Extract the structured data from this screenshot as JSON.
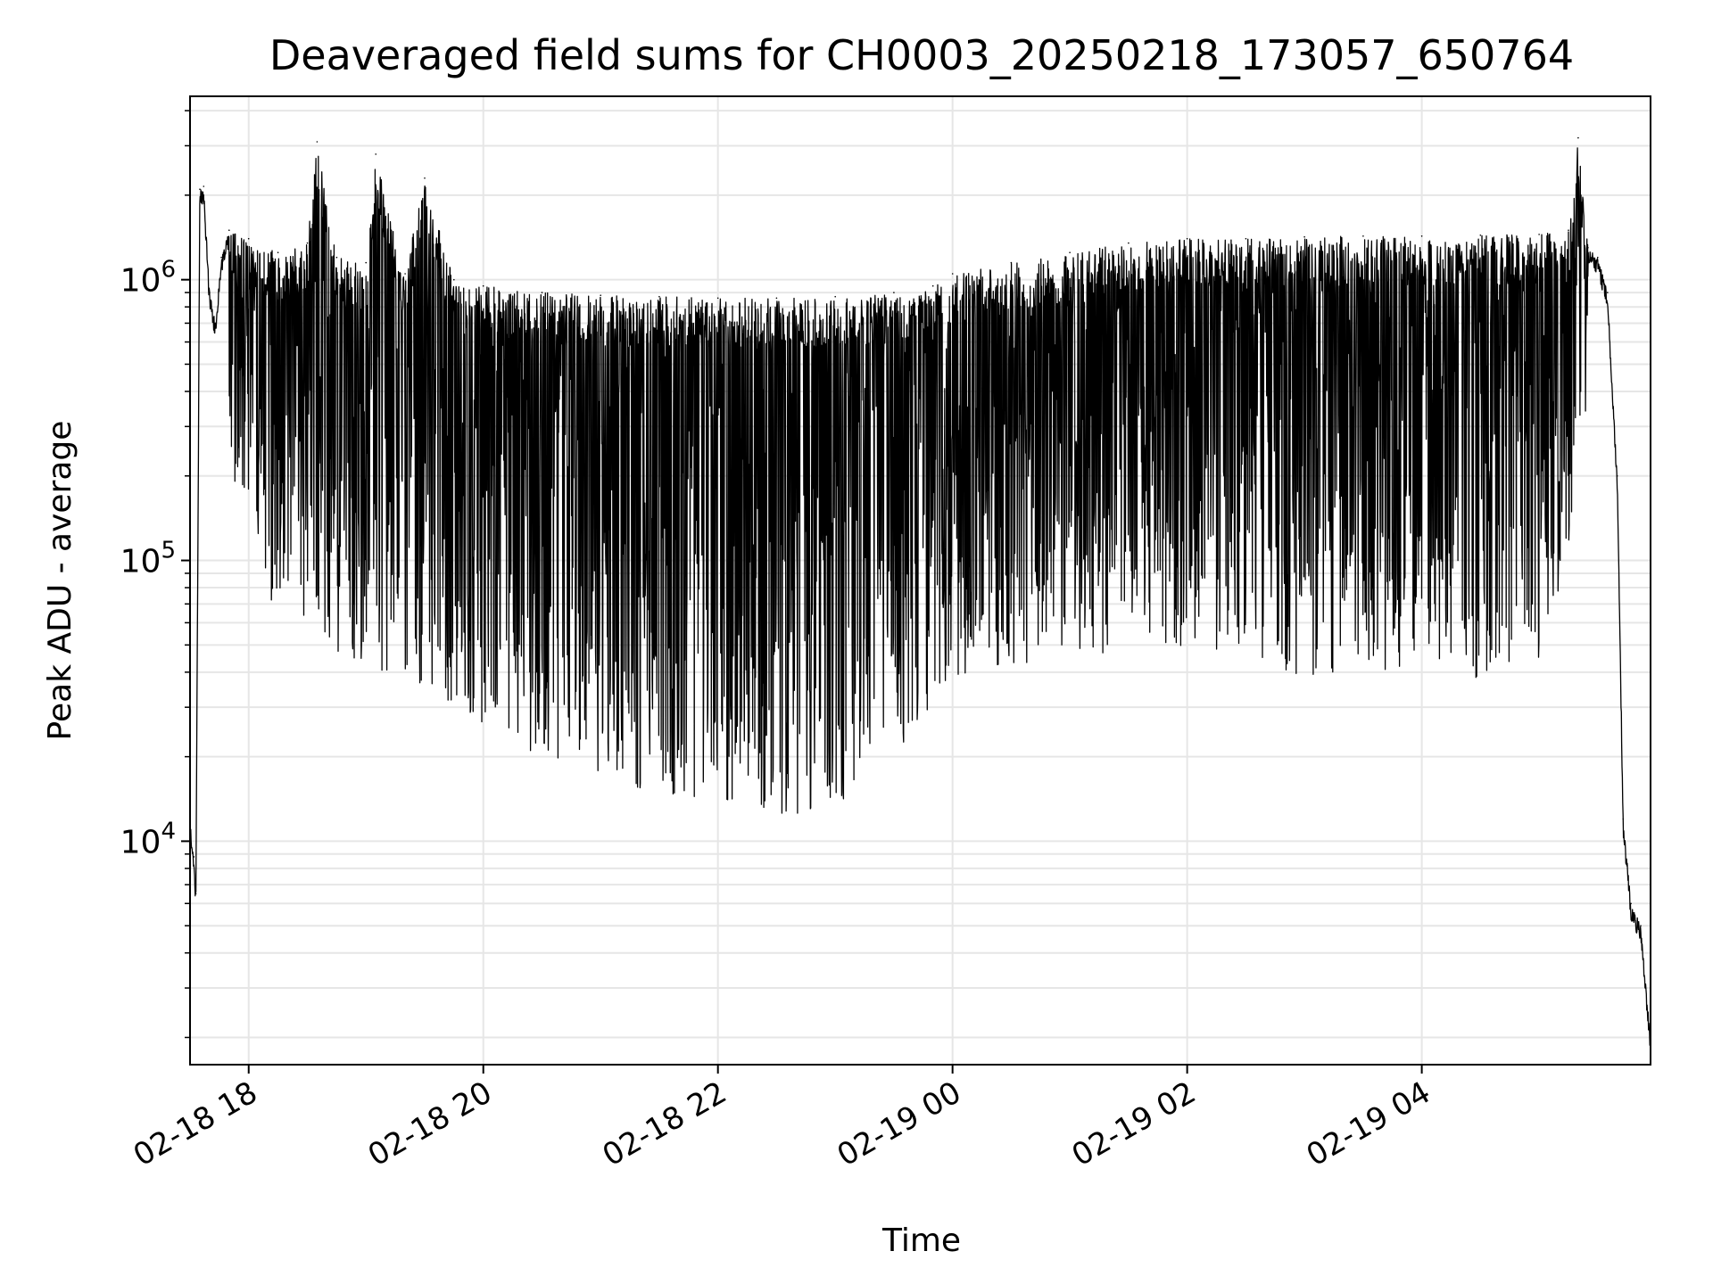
{
  "chart_data": {
    "type": "line",
    "title": "Deaveraged field sums for CH0003_20250218_173057_650764",
    "xlabel": "Time",
    "ylabel": "Peak ADU - average",
    "yscale": "log",
    "ylim": [
      1600,
      4500000
    ],
    "xlim": [
      "2025-02-18 17:30",
      "2025-02-19 05:57"
    ],
    "grid": true,
    "line_color": "#000000",
    "grid_color": "#e6e6e6",
    "x_ticks": [
      {
        "label": "02-18 18",
        "time": "2025-02-18 18:00"
      },
      {
        "label": "02-18 20",
        "time": "2025-02-18 20:00"
      },
      {
        "label": "02-18 22",
        "time": "2025-02-18 22:00"
      },
      {
        "label": "02-19 00",
        "time": "2025-02-19 00:00"
      },
      {
        "label": "02-19 02",
        "time": "2025-02-19 02:00"
      },
      {
        "label": "02-19 04",
        "time": "2025-02-19 04:00"
      }
    ],
    "y_ticks": [
      {
        "base": "10",
        "exp": "4",
        "value": 10000
      },
      {
        "base": "10",
        "exp": "5",
        "value": 100000
      },
      {
        "base": "10",
        "exp": "6",
        "value": 1000000
      }
    ],
    "series": [
      {
        "description_note": "",
        "points": [
          [
            "2025-02-18 17:30",
            12000
          ],
          [
            "2025-02-18 17:32",
            8800
          ],
          [
            "2025-02-18 17:33",
            6500
          ],
          [
            "2025-02-18 17:35",
            2100000
          ],
          [
            "2025-02-18 17:37",
            2150000
          ],
          [
            "2025-02-18 17:40",
            900000
          ],
          [
            "2025-02-18 17:43",
            700000
          ],
          [
            "2025-02-18 17:46",
            1200000
          ],
          [
            "2025-02-18 17:50",
            1500000
          ],
          [
            "2025-02-18 18:00",
            1400000
          ],
          [
            "2025-02-18 18:15",
            1250000
          ],
          [
            "2025-02-18 18:30",
            1350000
          ],
          [
            "2025-02-18 18:35",
            3100000
          ],
          [
            "2025-02-18 18:45",
            1200000
          ],
          [
            "2025-02-18 19:00",
            1150000
          ],
          [
            "2025-02-18 19:05",
            2800000
          ],
          [
            "2025-02-18 19:20",
            1050000
          ],
          [
            "2025-02-18 19:30",
            2300000
          ],
          [
            "2025-02-18 19:45",
            1000000
          ],
          [
            "2025-02-18 20:00",
            950000
          ],
          [
            "2025-02-18 20:30",
            900000
          ],
          [
            "2025-02-18 21:00",
            880000
          ],
          [
            "2025-02-18 21:30",
            870000
          ],
          [
            "2025-02-18 22:00",
            860000
          ],
          [
            "2025-02-18 22:30",
            860000
          ],
          [
            "2025-02-18 23:00",
            870000
          ],
          [
            "2025-02-18 23:30",
            900000
          ],
          [
            "2025-02-18 23:50",
            950000
          ],
          [
            "2025-02-19 00:00",
            1050000
          ],
          [
            "2025-02-19 00:30",
            1150000
          ],
          [
            "2025-02-19 01:00",
            1250000
          ],
          [
            "2025-02-19 01:30",
            1350000
          ],
          [
            "2025-02-19 02:00",
            1400000
          ],
          [
            "2025-02-19 02:30",
            1400000
          ],
          [
            "2025-02-19 03:00",
            1420000
          ],
          [
            "2025-02-19 03:30",
            1430000
          ],
          [
            "2025-02-19 04:00",
            1430000
          ],
          [
            "2025-02-19 04:30",
            1440000
          ],
          [
            "2025-02-19 05:00",
            1450000
          ],
          [
            "2025-02-19 05:15",
            1500000
          ],
          [
            "2025-02-19 05:20",
            3200000
          ],
          [
            "2025-02-19 05:25",
            1300000
          ],
          [
            "2025-02-19 05:30",
            1200000
          ],
          [
            "2025-02-19 05:35",
            900000
          ],
          [
            "2025-02-19 05:40",
            200000
          ],
          [
            "2025-02-19 05:43",
            12000
          ],
          [
            "2025-02-19 05:47",
            6000
          ],
          [
            "2025-02-19 05:52",
            5000
          ],
          [
            "2025-02-19 05:57",
            2000
          ]
        ],
        "lower_envelope": [
          [
            "2025-02-18 17:50",
            200000
          ],
          [
            "2025-02-18 18:10",
            70000
          ],
          [
            "2025-02-18 18:30",
            50000
          ],
          [
            "2025-02-18 19:00",
            40000
          ],
          [
            "2025-02-18 19:30",
            35000
          ],
          [
            "2025-02-18 20:00",
            25000
          ],
          [
            "2025-02-18 20:30",
            20000
          ],
          [
            "2025-02-18 21:00",
            17000
          ],
          [
            "2025-02-18 21:30",
            14000
          ],
          [
            "2025-02-18 22:00",
            13000
          ],
          [
            "2025-02-18 22:30",
            12000
          ],
          [
            "2025-02-18 23:00",
            13000
          ],
          [
            "2025-02-18 23:30",
            20000
          ],
          [
            "2025-02-19 00:00",
            38000
          ],
          [
            "2025-02-19 00:30",
            40000
          ],
          [
            "2025-02-19 01:00",
            45000
          ],
          [
            "2025-02-19 01:30",
            48000
          ],
          [
            "2025-02-19 02:00",
            50000
          ],
          [
            "2025-02-19 02:30",
            45000
          ],
          [
            "2025-02-19 03:00",
            38000
          ],
          [
            "2025-02-19 03:30",
            40000
          ],
          [
            "2025-02-19 04:00",
            42000
          ],
          [
            "2025-02-19 04:30",
            38000
          ],
          [
            "2025-02-19 05:00",
            45000
          ],
          [
            "2025-02-19 05:15",
            100000
          ],
          [
            "2025-02-19 05:25",
            400000
          ]
        ]
      }
    ]
  }
}
